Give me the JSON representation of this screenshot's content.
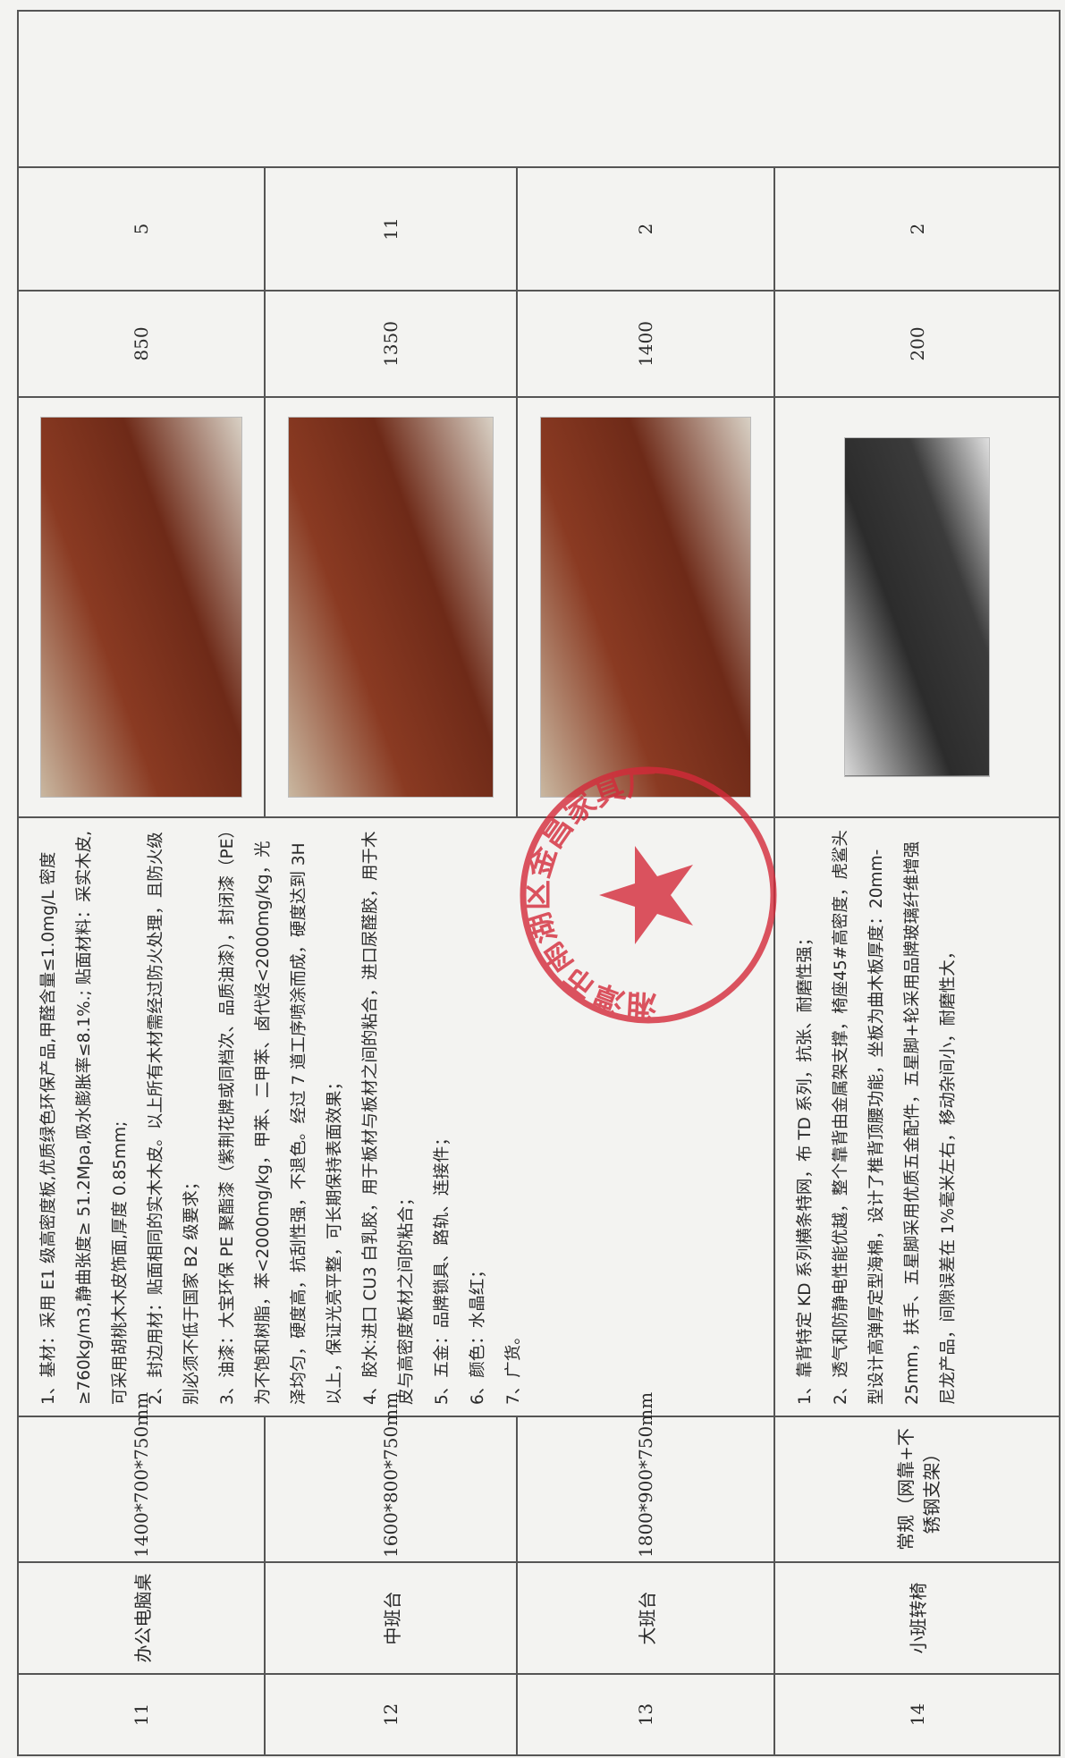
{
  "table": {
    "rows": [
      {
        "no": "11",
        "name": "办公电脑桌",
        "spec": "1400*700*750mm",
        "price": "850",
        "qty": "5"
      },
      {
        "no": "12",
        "name": "中班台",
        "spec": "1600*800*750mm",
        "price": "1350",
        "qty": "11"
      },
      {
        "no": "13",
        "name": "大班台",
        "spec": "1800*900*750mm",
        "price": "1400",
        "qty": "2"
      },
      {
        "no": "14",
        "name": "小班转椅",
        "spec": "常规（网靠+不锈钢支架）",
        "price": "200",
        "qty": "2"
      }
    ]
  },
  "descriptions": [
    [
      "1、基材：采用 E1 级高密度板,优质绿色环保产品,甲醛含量≤1.0mg/L 密度≥760kg/m3,静曲张度≥ 51.2Mpa,吸水膨胀率≤8.1%.; 贴面材料：采实木皮,可采用胡桃木木皮饰面,厚度 0.85mm;",
      "2、封边用材：贴面相同的实木木皮。以上所有木材需经过防火处理，且防火级别必须不低于国家 B2 级要求；",
      "3、油漆：大宝环保 PE 聚酯漆（紫荆花牌或同档次、品质油漆），封闭漆（PE）为不饱和树脂，苯<2000mg/kg，甲苯、二甲苯、卤代烃<2000mg/kg，光泽均匀，硬度高，抗刮性强，不退色。经过 7 道工序喷涂而成，硬度达到 3H 以上，保证光亮平整，可长期保持表面效果；",
      "4、胶水:进口 CU3 白乳胶，用于板材与板材之间的粘合，进口尿醛胶，用于木皮与高密度板材之间的粘合；",
      "5、五金：品牌锁具、路轨、连接件；",
      "6、颜色：水晶红；",
      "7、广货。"
    ],
    [
      "1、靠背特定 KD 系列横条特网，布 TD 系列，抗张、耐磨性强；",
      "2、透气和防静电性能优越，整个靠背由金属架支撑，椅座45#高密度，虎鲨头型设计高弹厚定型海棉，设计了椎背顶腰功能，坐板为曲木板厚度：20mm-25mm，扶手、五星脚采用优质五金配件，五星脚+轮采用品牌玻璃纤维增强尼龙产品，间隙误差在 1%毫米左右，移动杂间小，耐磨性大，"
    ]
  ],
  "stamp": "湘潭市雨湖区金昌家具厂"
}
